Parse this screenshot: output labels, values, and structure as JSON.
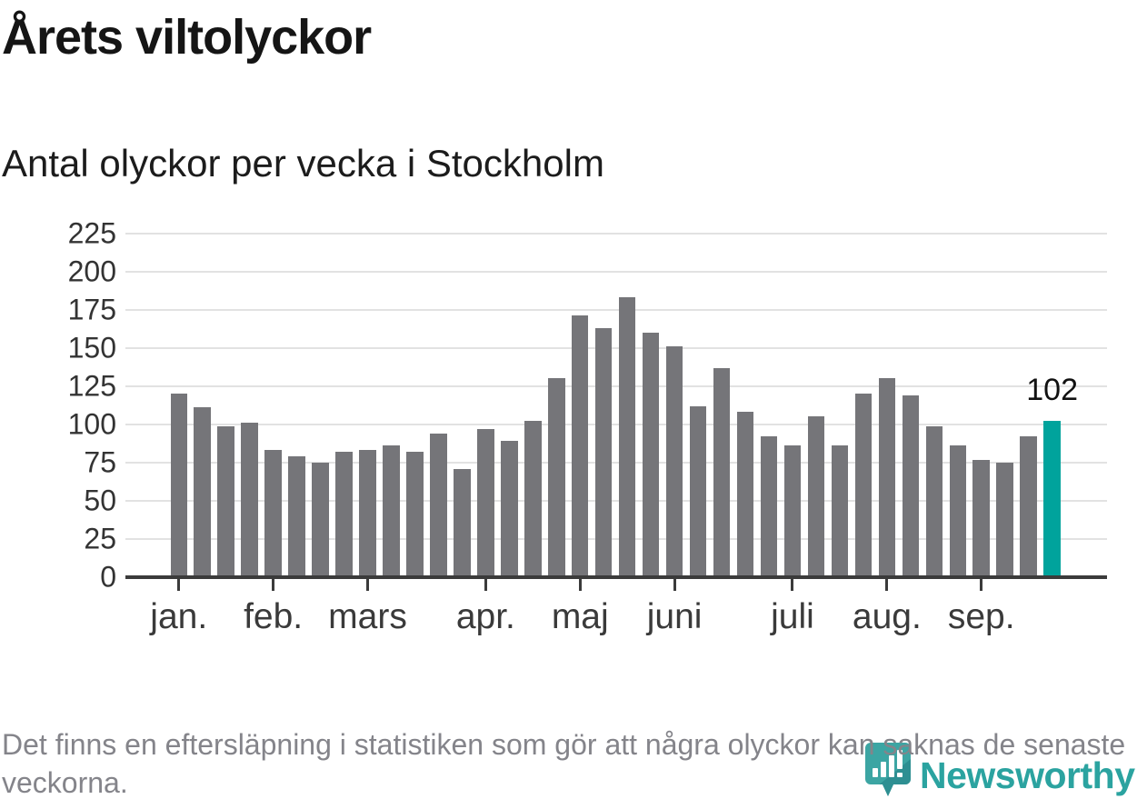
{
  "header": {
    "title": "Årets viltolyckor",
    "subtitle": "Antal olyckor per vecka i Stockholm"
  },
  "chart_data": {
    "type": "bar",
    "title": "Årets viltolyckor",
    "subtitle": "Antal olyckor per vecka i Stockholm",
    "x_unit": "week",
    "weeks": [
      1,
      2,
      3,
      4,
      5,
      6,
      7,
      8,
      9,
      10,
      11,
      12,
      13,
      14,
      15,
      16,
      17,
      18,
      19,
      20,
      21,
      22,
      23,
      24,
      25,
      26,
      27,
      28,
      29,
      30,
      31,
      32,
      33,
      34,
      35,
      36,
      37,
      38
    ],
    "values": [
      120,
      111,
      99,
      101,
      83,
      79,
      75,
      82,
      83,
      86,
      82,
      94,
      71,
      97,
      89,
      102,
      130,
      171,
      163,
      183,
      160,
      151,
      112,
      137,
      108,
      92,
      86,
      105,
      86,
      120,
      130,
      119,
      99,
      86,
      77,
      75,
      92,
      102
    ],
    "ylim": [
      0,
      225
    ],
    "y_ticks": [
      0,
      25,
      50,
      75,
      100,
      125,
      150,
      175,
      200,
      225
    ],
    "x_tick_weeks": [
      1,
      5,
      9,
      14,
      18,
      22,
      27,
      31,
      35
    ],
    "x_tick_labels": [
      "jan.",
      "feb.",
      "mars",
      "apr.",
      "maj",
      "juni",
      "juli",
      "aug.",
      "sep."
    ],
    "grid": "horizontal",
    "legend": "none",
    "bar_color": "#757579",
    "highlight_color": "#00a39c",
    "highlight_index": 37,
    "last_value_label": "102"
  },
  "footer": {
    "note": "Det finns en eftersläpning i statistiken som gör att några olyckor kan saknas de senaste veckorna.",
    "logo_text": "Newsworthy"
  },
  "colors": {
    "axis": "#3b3b3b",
    "gridline": "#e2e2e2",
    "logo_teal": "#2ba3a0",
    "logo_shadow": "#2b8b8f"
  }
}
